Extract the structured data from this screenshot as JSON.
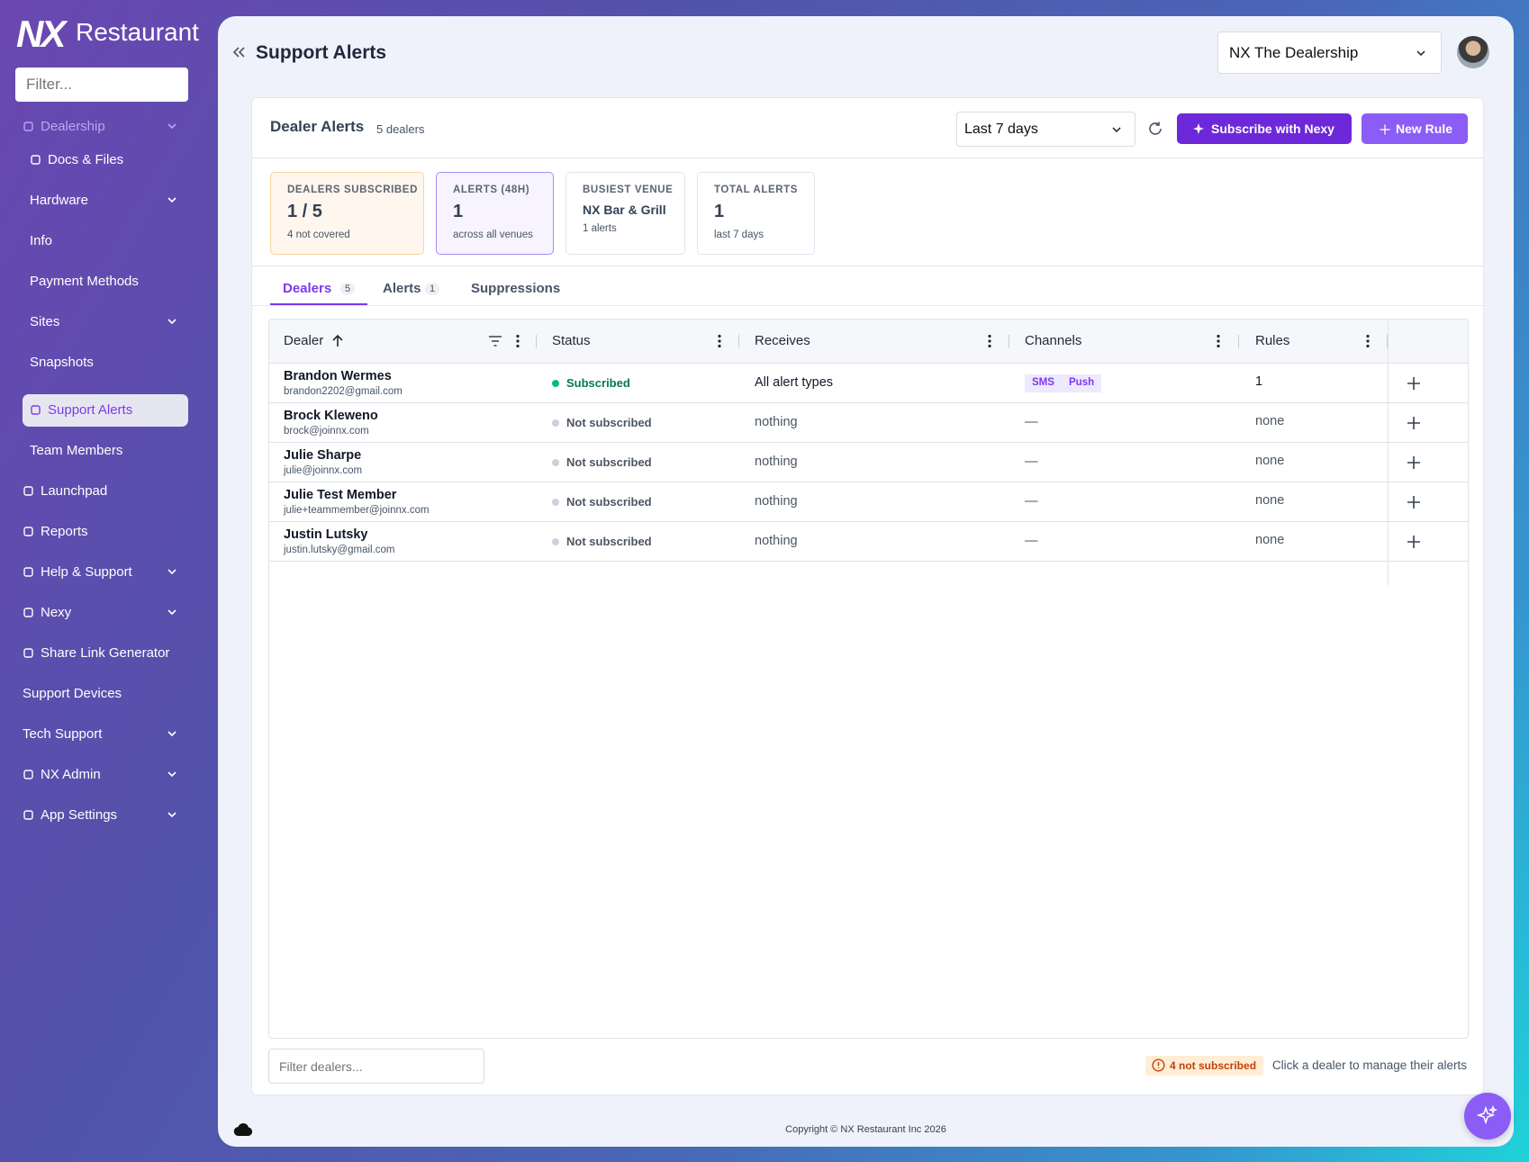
{
  "brand": {
    "logo": "NX",
    "name": "Restaurant"
  },
  "sidebar": {
    "filter_placeholder": "Filter...",
    "items": [
      {
        "label": "Dealership",
        "icon": true,
        "expandable": true,
        "children": [
          {
            "label": "Docs & Files",
            "icon": true
          },
          {
            "label": "Hardware",
            "expandable": true
          },
          {
            "label": "Info"
          },
          {
            "label": "Payment Methods"
          },
          {
            "label": "Sites",
            "expandable": true
          },
          {
            "label": "Snapshots"
          },
          {
            "label": "Support Alerts",
            "icon": true,
            "selected": true
          },
          {
            "label": "Team Members"
          }
        ]
      },
      {
        "label": "Launchpad",
        "icon": true
      },
      {
        "label": "Reports",
        "icon": true
      },
      {
        "label": "Help & Support",
        "icon": true,
        "expandable": true
      },
      {
        "label": "Nexy",
        "icon": true,
        "expandable": true
      },
      {
        "label": "Share Link Generator",
        "icon": true
      },
      {
        "label": "Support Devices"
      },
      {
        "label": "Tech Support",
        "expandable": true
      },
      {
        "label": "NX Admin",
        "icon": true,
        "expandable": true
      },
      {
        "label": "App Settings",
        "icon": true,
        "expandable": true
      }
    ]
  },
  "header": {
    "title": "Support Alerts",
    "dealership": "NX The Dealership"
  },
  "panel": {
    "title": "Dealer Alerts",
    "count": "5 dealers",
    "range": "Last 7 days",
    "buttons": [
      "Subscribe with Nexy",
      "New Rule"
    ],
    "cards": [
      {
        "label": "DEALERS SUBSCRIBED",
        "value": "1 / 5",
        "note": "4 not covered"
      },
      {
        "label": "ALERTS (48H)",
        "value": 1,
        "note": "across all venues"
      },
      {
        "label": "BUSIEST VENUE",
        "value": "NX Bar & Grill",
        "note": "1 alerts"
      },
      {
        "label": "TOTAL ALERTS",
        "value": 1,
        "note": "last 7 days"
      }
    ],
    "tabs": [
      {
        "label": "Dealers",
        "count": 5,
        "active": true
      },
      {
        "label": "Alerts",
        "count": 1
      },
      {
        "label": "Suppressions"
      }
    ],
    "table": {
      "columns": [
        "Dealer",
        "Status",
        "Receives",
        "Channels",
        "Rules"
      ],
      "rows": [
        {
          "name": "Brandon Wermes",
          "email": "brandon2202@gmail.com",
          "status": "Subscribed",
          "subscribed": true,
          "receives": "All alert types",
          "channels": [
            "SMS",
            "Push"
          ],
          "rules": 1
        },
        {
          "name": "Brock Kleweno",
          "email": "brock@joinnx.com",
          "status": "Not subscribed",
          "receives": "nothing",
          "channels": "—",
          "rules": "none"
        },
        {
          "name": "Julie Sharpe",
          "email": "julie@joinnx.com",
          "status": "Not subscribed",
          "receives": "nothing",
          "channels": "—",
          "rules": "none"
        },
        {
          "name": "Julie Test Member",
          "email": "julie+teammember@joinnx.com",
          "status": "Not subscribed",
          "receives": "nothing",
          "channels": "—",
          "rules": "none"
        },
        {
          "name": "Justin Lutsky",
          "email": "justin.lutsky@gmail.com",
          "status": "Not subscribed",
          "receives": "nothing",
          "channels": "—",
          "rules": "none"
        }
      ]
    },
    "filter_placeholder": "Filter dealers...",
    "badge": "4 not subscribed",
    "hint": "Click a dealer to manage their alerts"
  },
  "footer": {
    "copyright": "Copyright © NX Restaurant Inc 2026"
  }
}
